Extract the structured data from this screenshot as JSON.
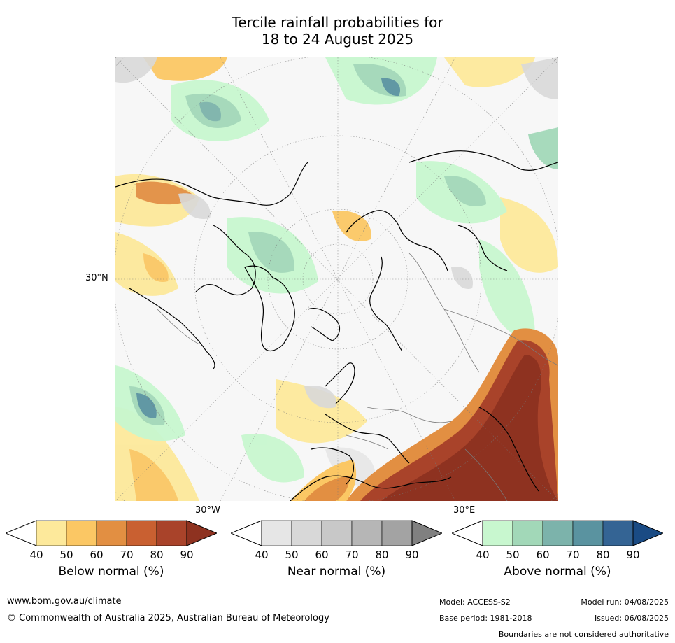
{
  "title_line1": "Tercile rainfall probabilities for",
  "title_line2": "18 to 24 August 2025",
  "map": {
    "lat_label": "30°N",
    "lon_label_west": "30°W",
    "lon_label_east": "30°E"
  },
  "legends": [
    {
      "title": "Below normal (%)",
      "ticks": [
        "40",
        "50",
        "60",
        "70",
        "80",
        "90"
      ],
      "colors": [
        "#ffffff",
        "#fde99b",
        "#fbc764",
        "#e28f42",
        "#c96031",
        "#a9432a",
        "#8e3220"
      ]
    },
    {
      "title": "Near normal (%)",
      "ticks": [
        "40",
        "50",
        "60",
        "70",
        "80",
        "90"
      ],
      "colors": [
        "#ffffff",
        "#e6e6e6",
        "#d8d8d8",
        "#c8c8c8",
        "#b6b6b6",
        "#a3a3a3",
        "#808080"
      ]
    },
    {
      "title": "Above normal (%)",
      "ticks": [
        "40",
        "50",
        "60",
        "70",
        "80",
        "90"
      ],
      "colors": [
        "#ffffff",
        "#c8f7cf",
        "#a2d8b8",
        "#7cb3ab",
        "#5a93a0",
        "#346494",
        "#1a4b84"
      ]
    }
  ],
  "footer": {
    "website": "www.bom.gov.au/climate",
    "copyright": "© Commonwealth of Australia 2025, Australian Bureau of Meteorology",
    "model": "Model: ACCESS-S2",
    "base_period": "Base period: 1981-2018",
    "model_run": "Model run: 04/08/2025",
    "issued": "Issued: 06/08/2025",
    "disclaimer": "Boundaries are not considered authoritative"
  }
}
